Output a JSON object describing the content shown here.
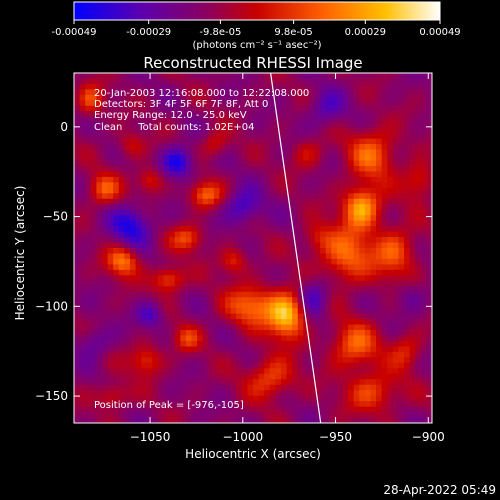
{
  "chart_data": {
    "type": "heatmap",
    "title": "Reconstructed RHESSI Image",
    "xlabel": "Heliocentric X (arcsec)",
    "ylabel": "Heliocentric Y (arcsec)",
    "xlim": [
      -1091,
      -898
    ],
    "ylim": [
      -165,
      30
    ],
    "xticks": [
      -1050,
      -1000,
      -950,
      -900
    ],
    "yticks": [
      0,
      -50,
      -100,
      -150
    ],
    "colorbar": {
      "min": -0.00049,
      "max": 0.00049,
      "ticks": [
        -0.00049,
        -0.00029,
        -9.8e-05,
        9.8e-05,
        0.00029,
        0.00049
      ],
      "tick_labels": [
        "-0.00049",
        "-0.00029",
        "-9.8e-05",
        "9.8e-05",
        "0.00029",
        "0.00049"
      ],
      "unit_label": "(photons cm⁻² s⁻¹ asec⁻²)",
      "colormap": [
        "#0000ff",
        "#5a00b0",
        "#8a0060",
        "#c80000",
        "#ff6000",
        "#ffc000",
        "#ffffff"
      ]
    },
    "info_lines": [
      "20-Jan-2003 12:16:08.000 to 12:22:08.000",
      "Detectors: 3F 4F 5F 6F 7F 8F, Att 0",
      "Energy Range: 12.0 - 25.0 keV",
      "Clean     Total counts: 1.02E+04"
    ],
    "peak_label": "Position of Peak = [-976,-105]",
    "peak": [
      -976,
      -105
    ],
    "limb_line": [
      [
        -985,
        30
      ],
      [
        -958,
        -165
      ]
    ],
    "blobs": [
      {
        "x": -976,
        "y": -105,
        "sx": 7,
        "sy": 9,
        "v": 0.00049
      },
      {
        "x": -936,
        "y": -45,
        "sx": 7,
        "sy": 8,
        "v": 0.00045
      },
      {
        "x": -944,
        "y": -72,
        "sx": 10,
        "sy": 11,
        "v": 0.00032
      },
      {
        "x": -930,
        "y": -15,
        "sx": 9,
        "sy": 10,
        "v": 0.0003
      },
      {
        "x": -918,
        "y": -70,
        "sx": 8,
        "sy": 10,
        "v": 0.00028
      },
      {
        "x": -940,
        "y": -122,
        "sx": 9,
        "sy": 9,
        "v": 0.0003
      },
      {
        "x": -930,
        "y": -148,
        "sx": 10,
        "sy": 8,
        "v": 0.00026
      },
      {
        "x": -995,
        "y": -100,
        "sx": 10,
        "sy": 8,
        "v": 0.00032
      },
      {
        "x": -985,
        "y": -140,
        "sx": 9,
        "sy": 8,
        "v": 0.00027
      },
      {
        "x": -1065,
        "y": -75,
        "sx": 6,
        "sy": 6,
        "v": 0.00034
      },
      {
        "x": -1040,
        "y": -85,
        "sx": 6,
        "sy": 5,
        "v": 0.0003
      },
      {
        "x": -1030,
        "y": -62,
        "sx": 6,
        "sy": 5,
        "v": 0.00026
      },
      {
        "x": -1075,
        "y": -35,
        "sx": 6,
        "sy": 6,
        "v": 0.00028
      },
      {
        "x": -1050,
        "y": -30,
        "sx": 5,
        "sy": 5,
        "v": 0.00022
      },
      {
        "x": -1082,
        "y": 15,
        "sx": 5,
        "sy": 6,
        "v": 0.00026
      },
      {
        "x": -1020,
        "y": -38,
        "sx": 6,
        "sy": 5,
        "v": 0.0003
      },
      {
        "x": -1005,
        "y": -75,
        "sx": 5,
        "sy": 5,
        "v": 0.00022
      },
      {
        "x": -1052,
        "y": -130,
        "sx": 6,
        "sy": 6,
        "v": 0.00024
      },
      {
        "x": -1030,
        "y": -118,
        "sx": 5,
        "sy": 5,
        "v": 0.00022
      },
      {
        "x": -1070,
        "y": -150,
        "sx": 6,
        "sy": 5,
        "v": 0.0002
      },
      {
        "x": -1015,
        "y": -10,
        "sx": 5,
        "sy": 5,
        "v": 0.00018
      },
      {
        "x": -1060,
        "y": -10,
        "sx": 5,
        "sy": 5,
        "v": 0.00016
      },
      {
        "x": -965,
        "y": -15,
        "sx": 6,
        "sy": 6,
        "v": 0.00015
      },
      {
        "x": -960,
        "y": -62,
        "sx": 6,
        "sy": 6,
        "v": 0.00016
      },
      {
        "x": -912,
        "y": -125,
        "sx": 6,
        "sy": 7,
        "v": 0.0002
      },
      {
        "x": -905,
        "y": -30,
        "sx": 6,
        "sy": 7,
        "v": 0.00022
      },
      {
        "x": -1060,
        "y": -55,
        "sx": 8,
        "sy": 8,
        "v": -0.00028
      },
      {
        "x": -1035,
        "y": -20,
        "sx": 6,
        "sy": 6,
        "v": -0.00032
      },
      {
        "x": -1000,
        "y": -45,
        "sx": 7,
        "sy": 7,
        "v": -0.00024
      },
      {
        "x": -1050,
        "y": -105,
        "sx": 5,
        "sy": 5,
        "v": -0.00022
      },
      {
        "x": -962,
        "y": -95,
        "sx": 6,
        "sy": 8,
        "v": -0.00024
      },
      {
        "x": -955,
        "y": 10,
        "sx": 7,
        "sy": 7,
        "v": -0.00018
      },
      {
        "x": -910,
        "y": -95,
        "sx": 6,
        "sy": 6,
        "v": -0.00012
      },
      {
        "x": -1080,
        "y": -120,
        "sx": 6,
        "sy": 6,
        "v": -0.00016
      }
    ]
  },
  "timestamp": "28-Apr-2022 05:49"
}
